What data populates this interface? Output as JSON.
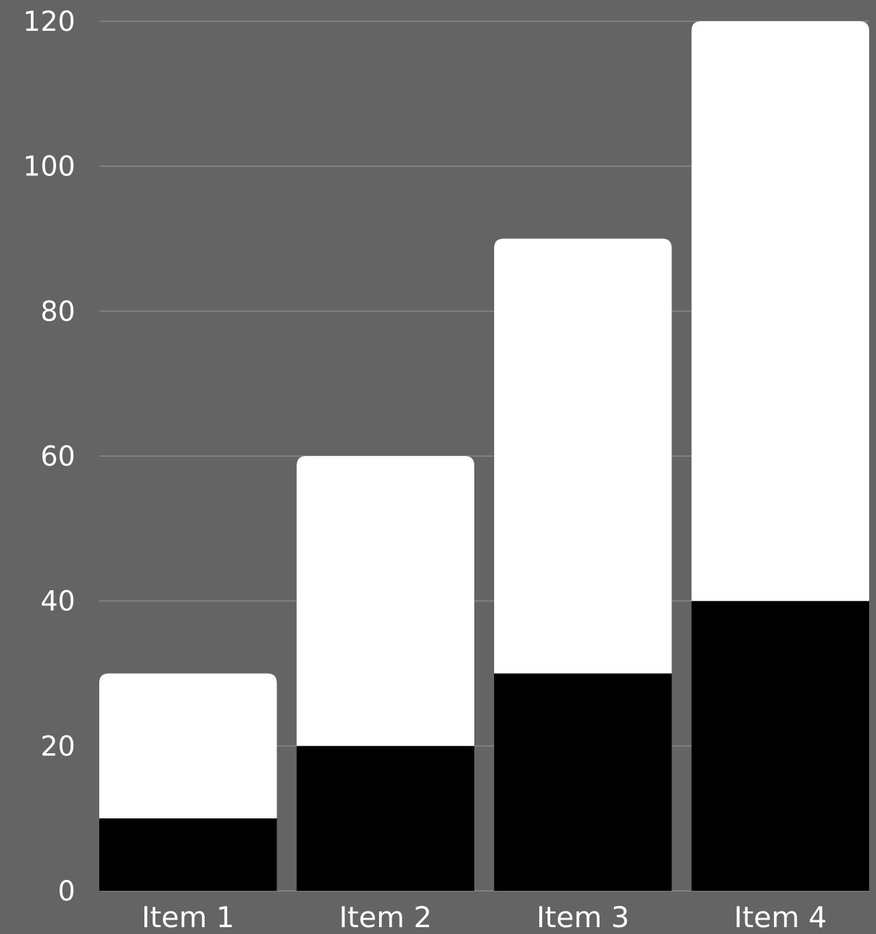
{
  "chart_data": {
    "type": "bar",
    "stacked": true,
    "categories": [
      "Item 1",
      "Item 2",
      "Item 3",
      "Item 4"
    ],
    "series": [
      {
        "values": [
          10,
          20,
          30,
          40
        ],
        "color": "#000000"
      },
      {
        "values": [
          20,
          40,
          60,
          80
        ],
        "color": "#ffffff"
      }
    ],
    "ylim": [
      0,
      120
    ],
    "yticks": [
      "0",
      "20",
      "40",
      "60",
      "80",
      "100",
      "120"
    ],
    "ytick_values": [
      0,
      20,
      40,
      60,
      80,
      100,
      120
    ],
    "grid": true,
    "legend": "none",
    "title": "",
    "xlabel": "",
    "ylabel": ""
  },
  "colors": {
    "background": "#646464",
    "grid": "#8a8a8a",
    "text": "#ffffff"
  }
}
